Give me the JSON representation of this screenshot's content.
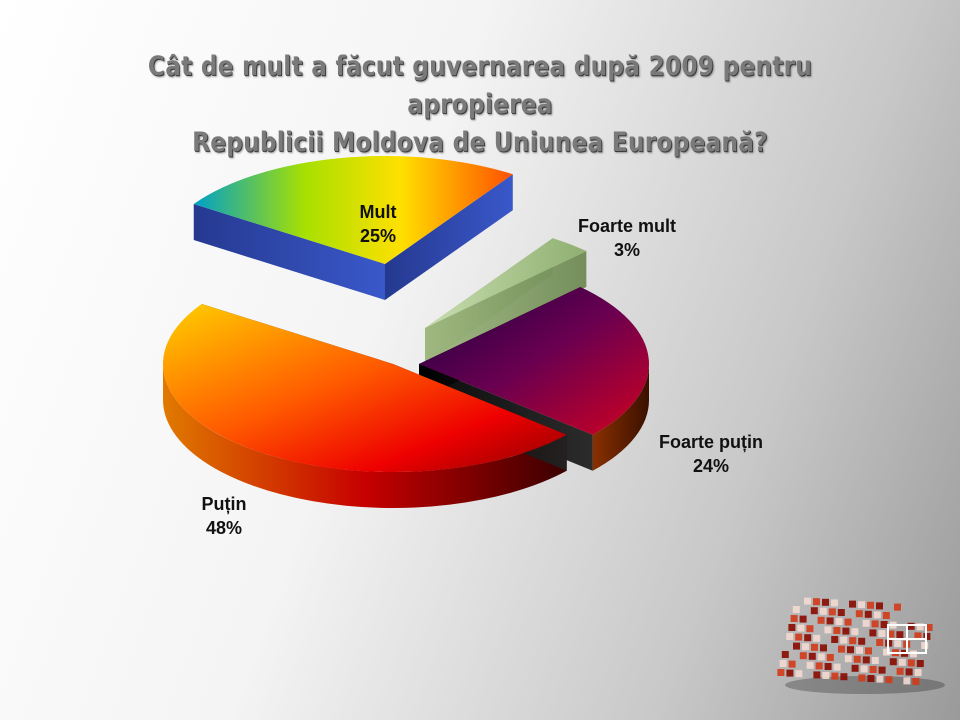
{
  "chart_data": {
    "type": "pie",
    "title_lines": [
      "Cât de mult a făcut guvernarea după 2009 pentru apropierea",
      "Republicii Moldova de Uniunea Europeană?"
    ],
    "slices": [
      {
        "label": "Foarte mult",
        "value": 3,
        "display": "3%"
      },
      {
        "label": "Foarte puțin",
        "value": 24,
        "display": "24%"
      },
      {
        "label": "Puțin",
        "value": 48,
        "display": "48%"
      },
      {
        "label": "Mult",
        "value": 25,
        "display": "25%"
      }
    ],
    "legend": "none",
    "three_d": true
  }
}
